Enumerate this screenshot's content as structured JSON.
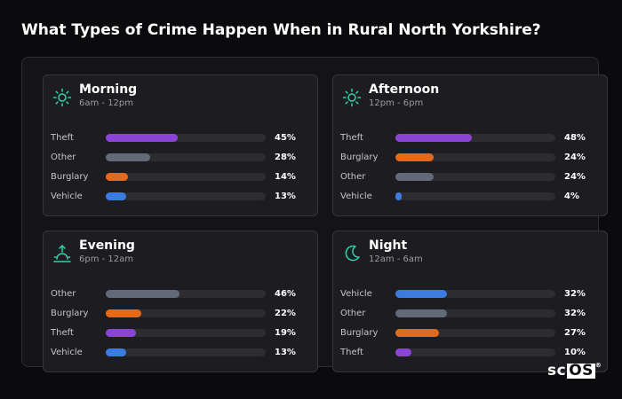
{
  "title": "What Types of Crime Happen When in Rural North Yorkshire?",
  "colors": {
    "Theft": "#8b45d6",
    "Other": "#626a7a",
    "Burglary": "#e36a1d",
    "Vehicle": "#3c7be0",
    "icon": "#2fd3a6",
    "track": "#2c2c31"
  },
  "chart_data": [
    {
      "type": "bar",
      "title": "Morning",
      "subtitle": "6am - 12pm",
      "icon": "sun-icon",
      "categories": [
        "Theft",
        "Other",
        "Burglary",
        "Vehicle"
      ],
      "values": [
        45,
        28,
        14,
        13
      ],
      "value_labels": [
        "45%",
        "28%",
        "14%",
        "13%"
      ],
      "ylim": [
        0,
        100
      ]
    },
    {
      "type": "bar",
      "title": "Afternoon",
      "subtitle": "12pm - 6pm",
      "icon": "sun-icon",
      "categories": [
        "Theft",
        "Burglary",
        "Other",
        "Vehicle"
      ],
      "values": [
        48,
        24,
        24,
        4
      ],
      "value_labels": [
        "48%",
        "24%",
        "24%",
        "4%"
      ],
      "ylim": [
        0,
        100
      ]
    },
    {
      "type": "bar",
      "title": "Evening",
      "subtitle": "6pm - 12am",
      "icon": "sunset-icon",
      "categories": [
        "Other",
        "Burglary",
        "Theft",
        "Vehicle"
      ],
      "values": [
        46,
        22,
        19,
        13
      ],
      "value_labels": [
        "46%",
        "22%",
        "19%",
        "13%"
      ],
      "ylim": [
        0,
        100
      ]
    },
    {
      "type": "bar",
      "title": "Night",
      "subtitle": "12am - 6am",
      "icon": "moon-icon",
      "categories": [
        "Vehicle",
        "Other",
        "Burglary",
        "Theft"
      ],
      "values": [
        32,
        32,
        27,
        10
      ],
      "value_labels": [
        "32%",
        "32%",
        "27%",
        "10%"
      ],
      "ylim": [
        0,
        100
      ]
    }
  ],
  "logo": {
    "prefix": "sc",
    "boxed": "OS",
    "mark": "®"
  }
}
